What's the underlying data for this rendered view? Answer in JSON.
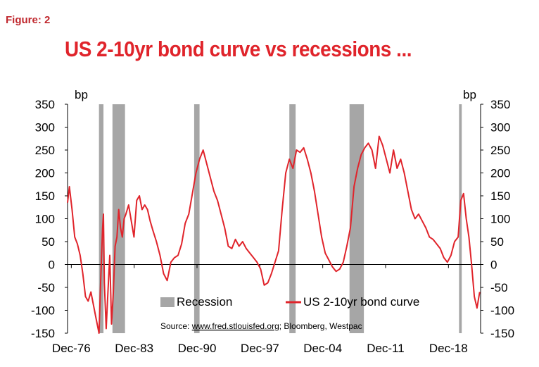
{
  "figure_label": "Figure: 2",
  "chart_data": {
    "type": "line",
    "title": "US 2-10yr bond curve vs recessions ...",
    "ylabel_left": "bp",
    "ylabel_right": "bp",
    "ylim": [
      -150,
      350
    ],
    "yticks": [
      350,
      300,
      250,
      200,
      150,
      100,
      50,
      0,
      -50,
      -100,
      -150
    ],
    "xlim": [
      1976.5,
      2022.5
    ],
    "xtick_labels": [
      "Dec-76",
      "Dec-83",
      "Dec-90",
      "Dec-97",
      "Dec-04",
      "Dec-11",
      "Dec-18"
    ],
    "xtick_values": [
      1976.92,
      1983.92,
      1990.92,
      1997.92,
      2004.92,
      2011.92,
      2018.92
    ],
    "recessions": [
      {
        "start": 1980.0,
        "end": 1980.5
      },
      {
        "start": 1981.5,
        "end": 1982.9
      },
      {
        "start": 1990.6,
        "end": 1991.2
      },
      {
        "start": 2001.2,
        "end": 2001.9
      },
      {
        "start": 2007.9,
        "end": 2009.5
      },
      {
        "start": 2020.1,
        "end": 2020.4
      }
    ],
    "series": [
      {
        "name": "US 2-10yr bond curve",
        "color": "#e0242b",
        "x": [
          1976.5,
          1976.7,
          1977.0,
          1977.3,
          1977.6,
          1977.9,
          1978.2,
          1978.5,
          1978.8,
          1979.1,
          1979.4,
          1979.7,
          1980.0,
          1980.2,
          1980.4,
          1980.5,
          1980.6,
          1980.8,
          1981.0,
          1981.2,
          1981.4,
          1981.6,
          1981.8,
          1982.0,
          1982.2,
          1982.4,
          1982.6,
          1982.8,
          1983.0,
          1983.3,
          1983.6,
          1983.9,
          1984.2,
          1984.5,
          1984.8,
          1985.1,
          1985.4,
          1985.7,
          1986.0,
          1986.4,
          1986.8,
          1987.2,
          1987.6,
          1988.0,
          1988.4,
          1988.8,
          1989.2,
          1989.6,
          1990.0,
          1990.4,
          1990.8,
          1991.2,
          1991.6,
          1992.0,
          1992.4,
          1992.8,
          1993.2,
          1993.6,
          1994.0,
          1994.4,
          1994.8,
          1995.2,
          1995.6,
          1996.0,
          1996.4,
          1996.8,
          1997.2,
          1997.6,
          1998.0,
          1998.4,
          1998.8,
          1999.2,
          1999.6,
          2000.0,
          2000.4,
          2000.8,
          2001.2,
          2001.6,
          2002.0,
          2002.4,
          2002.8,
          2003.2,
          2003.6,
          2004.0,
          2004.4,
          2004.8,
          2005.2,
          2005.6,
          2006.0,
          2006.4,
          2006.8,
          2007.2,
          2007.6,
          2008.0,
          2008.4,
          2008.8,
          2009.2,
          2009.6,
          2010.0,
          2010.4,
          2010.8,
          2011.2,
          2011.6,
          2012.0,
          2012.4,
          2012.8,
          2013.2,
          2013.6,
          2014.0,
          2014.4,
          2014.8,
          2015.2,
          2015.6,
          2016.0,
          2016.4,
          2016.8,
          2017.2,
          2017.6,
          2018.0,
          2018.4,
          2018.8,
          2019.2,
          2019.6,
          2020.0,
          2020.3,
          2020.6,
          2020.9,
          2021.2,
          2021.5,
          2021.8,
          2022.1,
          2022.4
        ],
        "values": [
          135,
          170,
          120,
          60,
          45,
          20,
          -20,
          -70,
          -80,
          -60,
          -90,
          -120,
          -150,
          -30,
          80,
          110,
          -40,
          -140,
          -60,
          20,
          -130,
          -60,
          40,
          60,
          120,
          80,
          60,
          100,
          110,
          130,
          95,
          60,
          140,
          150,
          120,
          130,
          120,
          95,
          75,
          50,
          20,
          -20,
          -35,
          5,
          15,
          20,
          45,
          90,
          110,
          155,
          200,
          230,
          250,
          220,
          190,
          160,
          140,
          110,
          80,
          40,
          35,
          55,
          40,
          50,
          35,
          25,
          15,
          5,
          -10,
          -45,
          -40,
          -20,
          5,
          30,
          120,
          200,
          230,
          210,
          250,
          245,
          255,
          230,
          200,
          160,
          110,
          60,
          25,
          10,
          -5,
          -15,
          -10,
          5,
          40,
          80,
          170,
          210,
          240,
          255,
          265,
          250,
          210,
          280,
          260,
          230,
          200,
          250,
          210,
          230,
          200,
          160,
          120,
          100,
          110,
          95,
          80,
          60,
          55,
          45,
          35,
          15,
          5,
          20,
          50,
          60,
          140,
          155,
          100,
          60,
          0,
          -70,
          -95,
          -60
        ]
      }
    ],
    "legend": [
      {
        "label": "Recession",
        "kind": "box",
        "color": "#a6a6a6"
      },
      {
        "label": "US 2-10yr bond curve",
        "kind": "line",
        "color": "#e0242b"
      }
    ],
    "source_prefix": "Source: ",
    "source_link": "www.fred.stlouisfed.org",
    "source_suffix": "; Bloomberg, Westpac"
  }
}
